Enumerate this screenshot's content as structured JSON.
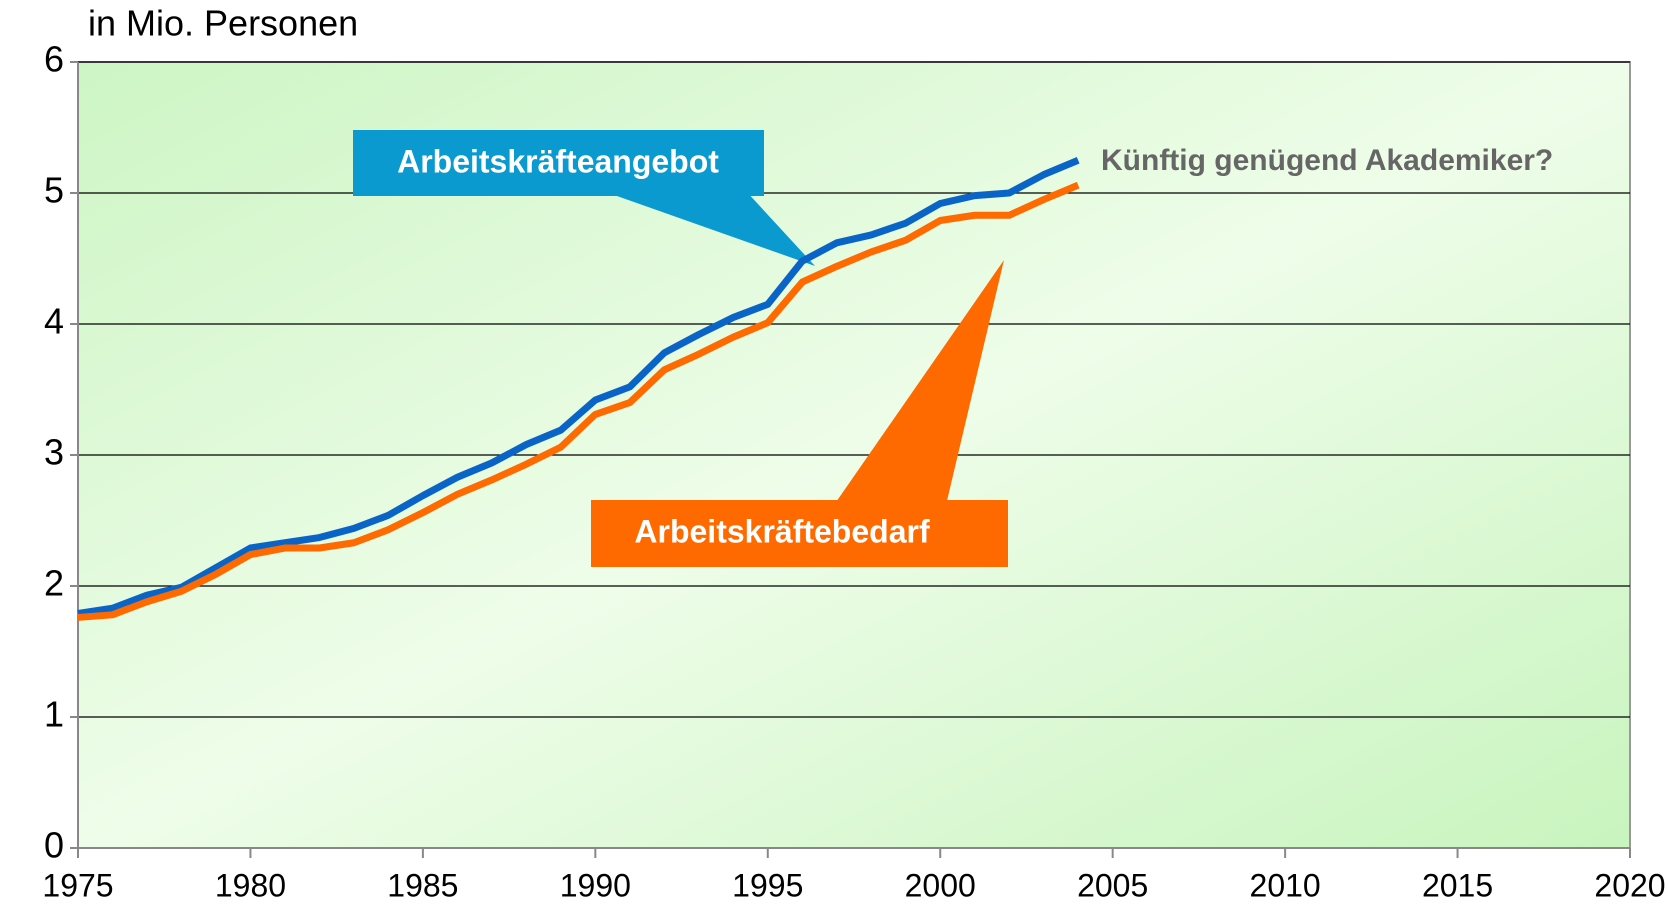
{
  "chart_data": {
    "type": "line",
    "y_label": "in Mio. Personen",
    "x": [
      1975,
      1976,
      1977,
      1978,
      1979,
      1980,
      1981,
      1982,
      1983,
      1984,
      1985,
      1986,
      1987,
      1988,
      1989,
      1990,
      1991,
      1992,
      1993,
      1994,
      1995,
      1996,
      1997,
      1998,
      1999,
      2000,
      2001,
      2002,
      2003,
      2004
    ],
    "series": [
      {
        "name": "Arbeitskräfteangebot",
        "color": "#0a64c8",
        "values": [
          1.79,
          1.83,
          1.93,
          1.99,
          2.14,
          2.29,
          2.33,
          2.37,
          2.44,
          2.54,
          2.69,
          2.83,
          2.94,
          3.08,
          3.19,
          3.42,
          3.52,
          3.78,
          3.92,
          4.05,
          4.15,
          4.48,
          4.62,
          4.68,
          4.77,
          4.92,
          4.98,
          5.0,
          5.14,
          5.25
        ]
      },
      {
        "name": "Arbeitskräftebedarf",
        "color": "#ff6a00",
        "values": [
          1.76,
          1.78,
          1.88,
          1.96,
          2.09,
          2.24,
          2.29,
          2.29,
          2.33,
          2.43,
          2.56,
          2.7,
          2.81,
          2.93,
          3.06,
          3.31,
          3.4,
          3.65,
          3.77,
          3.9,
          4.01,
          4.32,
          4.44,
          4.55,
          4.64,
          4.79,
          4.83,
          4.83,
          4.95,
          5.06
        ]
      }
    ],
    "annotation": "Künftig genügend Akademiker?",
    "xlim": [
      1975,
      2020
    ],
    "xticks": [
      1975,
      1980,
      1985,
      1990,
      1995,
      2000,
      2005,
      2010,
      2015,
      2020
    ],
    "ylim": [
      0,
      6
    ],
    "yticks": [
      0,
      1,
      2,
      3,
      4,
      5,
      6
    ],
    "grid": true
  }
}
